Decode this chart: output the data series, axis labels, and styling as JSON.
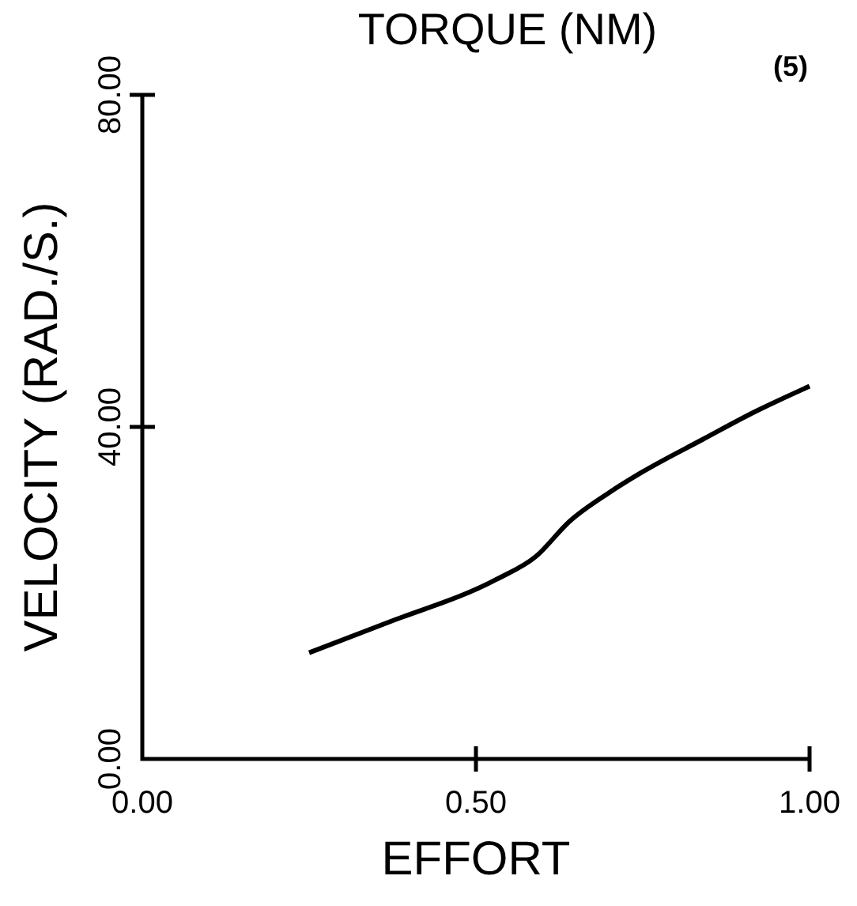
{
  "chart_data": {
    "type": "line",
    "title": "TORQUE (NM)",
    "xlabel": "EFFORT",
    "ylabel": "VELOCITY (RAD./S.)",
    "annotations": [
      "(5)"
    ],
    "x": [
      0.25,
      0.37,
      0.53,
      0.59,
      0.64,
      0.7,
      0.75,
      0.84,
      0.92,
      1.0
    ],
    "series": [
      {
        "color": "#000000",
        "values": [
          12.8,
          16.5,
          21.6,
          24.4,
          28.6,
          32.1,
          34.6,
          38.5,
          41.9,
          44.9
        ]
      }
    ],
    "xlim": [
      0,
      1
    ],
    "xticks": [
      {
        "value": 0,
        "label": "0.00"
      },
      {
        "value": 0.5,
        "label": "0.50"
      },
      {
        "value": 1,
        "label": "1.00"
      }
    ],
    "ylim": [
      0,
      80
    ],
    "yticks": [
      {
        "value": 0,
        "label": "0.00"
      },
      {
        "value": 40,
        "label": "40.00"
      },
      {
        "value": 80,
        "label": "80.00"
      }
    ],
    "grid": false,
    "line_style": "solid"
  }
}
